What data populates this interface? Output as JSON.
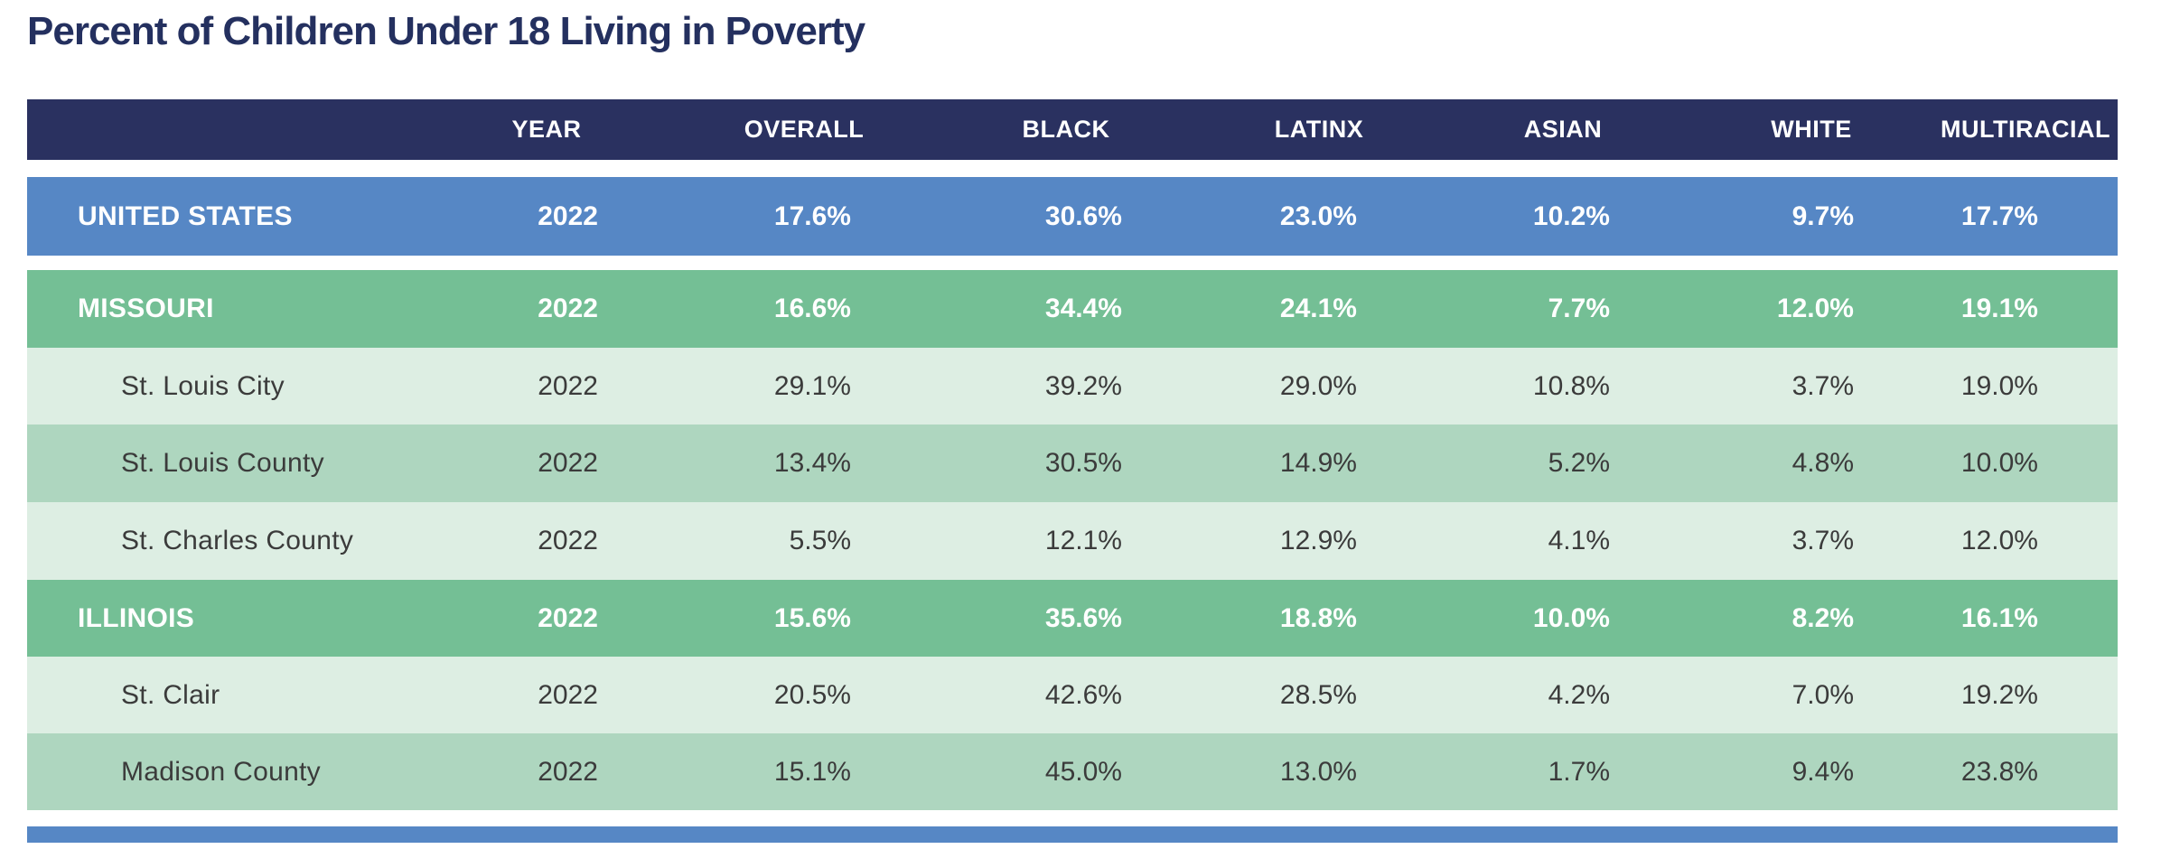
{
  "title": "Percent of Children Under 18 Living in Poverty",
  "chart_data": {
    "type": "table",
    "title": "Percent of Children Under 18 Living in Poverty",
    "columns": [
      "",
      "YEAR",
      "OVERALL",
      "BLACK",
      "LATINX",
      "ASIAN",
      "WHITE",
      "MULTIRACIAL"
    ],
    "rows": [
      {
        "label": "UNITED STATES",
        "level": "national",
        "year": "2022",
        "values": [
          "17.6%",
          "30.6%",
          "23.0%",
          "10.2%",
          "9.7%",
          "17.7%"
        ]
      },
      {
        "label": "MISSOURI",
        "level": "state",
        "year": "2022",
        "values": [
          "16.6%",
          "34.4%",
          "24.1%",
          "7.7%",
          "12.0%",
          "19.1%"
        ]
      },
      {
        "label": "St. Louis City",
        "level": "county-light",
        "year": "2022",
        "values": [
          "29.1%",
          "39.2%",
          "29.0%",
          "10.8%",
          "3.7%",
          "19.0%"
        ]
      },
      {
        "label": "St. Louis County",
        "level": "county-medium",
        "year": "2022",
        "values": [
          "13.4%",
          "30.5%",
          "14.9%",
          "5.2%",
          "4.8%",
          "10.0%"
        ]
      },
      {
        "label": "St. Charles County",
        "level": "county-light",
        "year": "2022",
        "values": [
          "5.5%",
          "12.1%",
          "12.9%",
          "4.1%",
          "3.7%",
          "12.0%"
        ]
      },
      {
        "label": "ILLINOIS",
        "level": "state",
        "year": "2022",
        "values": [
          "15.6%",
          "35.6%",
          "18.8%",
          "10.0%",
          "8.2%",
          "16.1%"
        ]
      },
      {
        "label": "St. Clair",
        "level": "county-light",
        "year": "2022",
        "values": [
          "20.5%",
          "42.6%",
          "28.5%",
          "4.2%",
          "7.0%",
          "19.2%"
        ]
      },
      {
        "label": "Madison County",
        "level": "county-medium",
        "year": "2022",
        "values": [
          "15.1%",
          "45.0%",
          "13.0%",
          "1.7%",
          "9.4%",
          "23.8%"
        ]
      }
    ]
  },
  "colors": {
    "title_navy": "#24305f",
    "header_navy": "#2a3160",
    "national_blue": "#5687c5",
    "state_green": "#74bf95",
    "county_light_green": "#ddeee3",
    "county_medium_green": "#aed6bf",
    "dark_text": "#3b3b3b",
    "white_text": "#ffffff"
  }
}
